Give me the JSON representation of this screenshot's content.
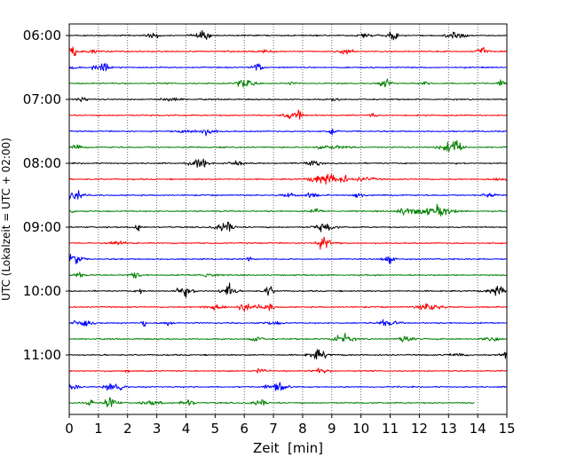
{
  "chart_data": {
    "type": "line",
    "title": "",
    "xlabel": "Zeit  [min]",
    "ylabel": "UTC (Lokalzeit = UTC + 02:00)",
    "xlim": [
      0,
      15
    ],
    "x_ticks": [
      0,
      1,
      2,
      3,
      4,
      5,
      6,
      7,
      8,
      9,
      10,
      11,
      12,
      13,
      14,
      15
    ],
    "x_tick_labels": [
      "0",
      "1",
      "2",
      "3",
      "4",
      "5",
      "6",
      "7",
      "8",
      "9",
      "10",
      "11",
      "12",
      "13",
      "14",
      "15"
    ],
    "y_tick_labels": [
      "06:00",
      "07:00",
      "08:00",
      "09:00",
      "10:00",
      "11:00"
    ],
    "grid": "vertical dotted at each minute",
    "series_colors": [
      "#000000",
      "#ff0000",
      "#0000ff",
      "#008000"
    ],
    "series": [
      {
        "start": "06:00",
        "color": "#000000",
        "end_min": 15
      },
      {
        "start": "06:15",
        "color": "#ff0000",
        "end_min": 15
      },
      {
        "start": "06:30",
        "color": "#0000ff",
        "end_min": 15
      },
      {
        "start": "06:45",
        "color": "#008000",
        "end_min": 15
      },
      {
        "start": "07:00",
        "color": "#000000",
        "end_min": 15
      },
      {
        "start": "07:15",
        "color": "#ff0000",
        "end_min": 15
      },
      {
        "start": "07:30",
        "color": "#0000ff",
        "end_min": 15
      },
      {
        "start": "07:45",
        "color": "#008000",
        "end_min": 15
      },
      {
        "start": "08:00",
        "color": "#000000",
        "end_min": 15
      },
      {
        "start": "08:15",
        "color": "#ff0000",
        "end_min": 15
      },
      {
        "start": "08:30",
        "color": "#0000ff",
        "end_min": 15
      },
      {
        "start": "08:45",
        "color": "#008000",
        "end_min": 15
      },
      {
        "start": "09:00",
        "color": "#000000",
        "end_min": 15
      },
      {
        "start": "09:15",
        "color": "#ff0000",
        "end_min": 15
      },
      {
        "start": "09:30",
        "color": "#0000ff",
        "end_min": 15
      },
      {
        "start": "09:45",
        "color": "#008000",
        "end_min": 15
      },
      {
        "start": "10:00",
        "color": "#000000",
        "end_min": 15
      },
      {
        "start": "10:15",
        "color": "#ff0000",
        "end_min": 15
      },
      {
        "start": "10:30",
        "color": "#0000ff",
        "end_min": 15
      },
      {
        "start": "10:45",
        "color": "#008000",
        "end_min": 15
      },
      {
        "start": "11:00",
        "color": "#000000",
        "end_min": 15
      },
      {
        "start": "11:15",
        "color": "#ff0000",
        "end_min": 15
      },
      {
        "start": "11:30",
        "color": "#0000ff",
        "end_min": 15
      },
      {
        "start": "11:45",
        "color": "#008000",
        "end_min": 13.9
      }
    ]
  }
}
